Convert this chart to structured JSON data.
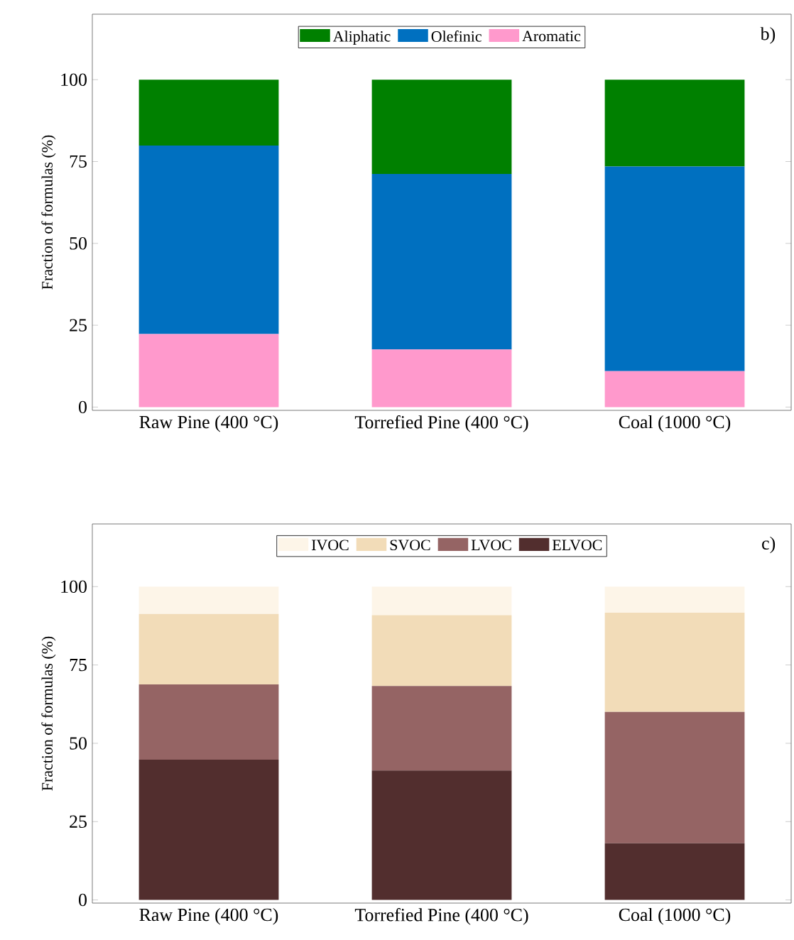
{
  "chart_data": [
    {
      "type": "bar",
      "stacked": true,
      "ylabel": "Fraction of formulas (%)",
      "categories": [
        "Raw Pine (400 °C)",
        "Torrefied Pine (400 °C)",
        "Coal (1000 °C)"
      ],
      "series": [
        {
          "name": "Aromatic",
          "color": "#ff99cc",
          "values": [
            22.3,
            17.6,
            11.0
          ]
        },
        {
          "name": "Olefinic",
          "color": "#0070c0",
          "values": [
            57.6,
            53.6,
            62.5
          ]
        },
        {
          "name": "Aliphatic",
          "color": "#008000",
          "values": [
            20.1,
            28.8,
            26.5
          ]
        }
      ],
      "ylim": [
        -1,
        120
      ],
      "yticks": [
        0,
        25,
        50,
        75,
        100
      ],
      "legend": "top",
      "grid": false,
      "annotations": [
        "b)"
      ]
    },
    {
      "type": "bar",
      "stacked": true,
      "ylabel": "Fraction of formulas (%)",
      "categories": [
        "Raw Pine (400 °C)",
        "Torrefied Pine (400 °C)",
        "Coal (1000 °C)"
      ],
      "series": [
        {
          "name": "ELVOC",
          "color": "#522e2e",
          "values": [
            44.8,
            41.3,
            18.1
          ]
        },
        {
          "name": "LVOC",
          "color": "#956464",
          "values": [
            24.0,
            27.0,
            41.9
          ]
        },
        {
          "name": "SVOC",
          "color": "#f2dcb8",
          "values": [
            22.5,
            22.6,
            31.7
          ]
        },
        {
          "name": "IVOC",
          "color": "#fdf5e8",
          "values": [
            8.7,
            9.1,
            8.3
          ]
        }
      ],
      "ylim": [
        -1,
        120
      ],
      "yticks": [
        0,
        25,
        50,
        75,
        100
      ],
      "legend": "top",
      "grid": false,
      "annotations": [
        "c)"
      ]
    }
  ]
}
